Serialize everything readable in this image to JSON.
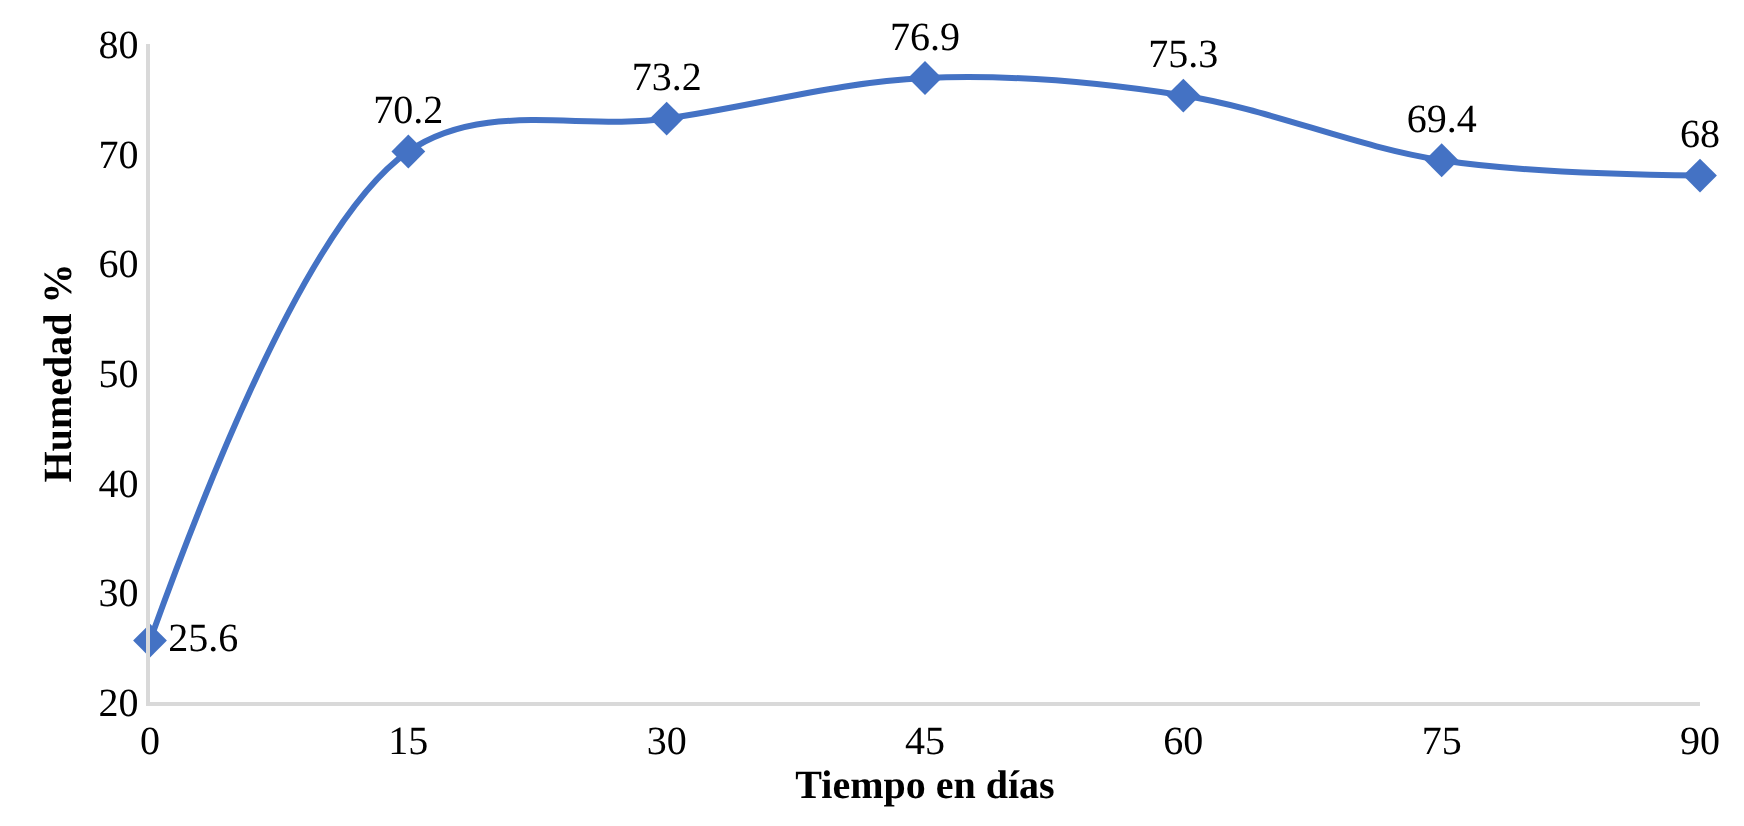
{
  "chart_data": {
    "type": "line",
    "xlabel": "Tiempo en días",
    "ylabel": "Humedad %",
    "x": [
      0,
      15,
      30,
      45,
      60,
      75,
      90
    ],
    "series": [
      {
        "color": "#4472c4",
        "values": [
          25.6,
          70.2,
          73.2,
          76.9,
          75.3,
          69.4,
          68
        ]
      }
    ],
    "xlim": [
      0,
      90
    ],
    "xticks": [
      0,
      15,
      30,
      45,
      60,
      75,
      90
    ],
    "ylim": [
      20,
      80
    ],
    "yticks": [
      20,
      30,
      40,
      50,
      60,
      70,
      80
    ],
    "marker": "diamond",
    "line_style": "solid",
    "data_labels": true
  }
}
